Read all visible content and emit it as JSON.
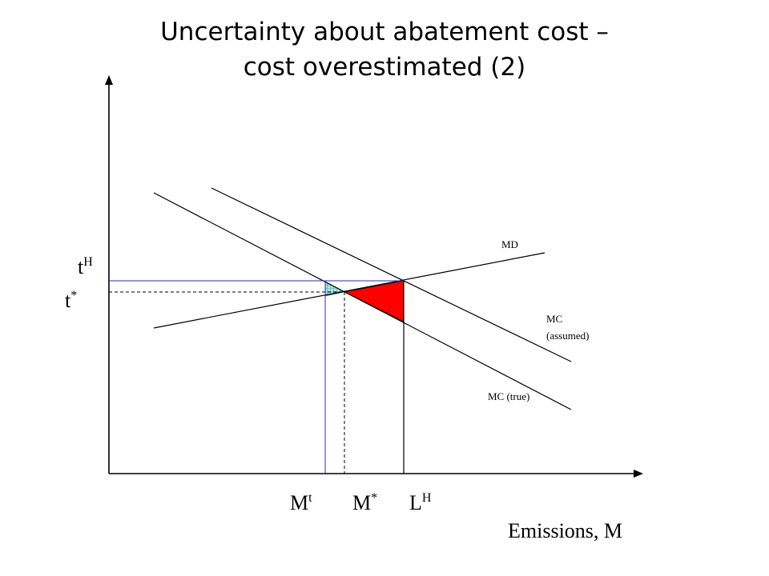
{
  "title": {
    "line1": "Uncertainty about abatement cost –",
    "line2": "cost overestimated (2)"
  },
  "curves": {
    "md": "MD",
    "mc_assumed_1": "MC",
    "mc_assumed_2": "(assumed)",
    "mc_true": "MC (true)"
  },
  "y_labels": {
    "t_high_base": "t",
    "t_high_sup": "H",
    "t_star_base": "t",
    "t_star_sup": "*"
  },
  "x_labels": {
    "m_t_base": "M",
    "m_t_sup": "t",
    "m_star_base": "M",
    "m_star_sup": "*",
    "l_high_base": "L",
    "l_high_sup": "H",
    "axis": "Emissions, M"
  },
  "colors": {
    "loss_area": "#ff0000",
    "small_area": "#a8e6e0",
    "guide_line": "#2233aa",
    "axis": "#000000"
  }
}
